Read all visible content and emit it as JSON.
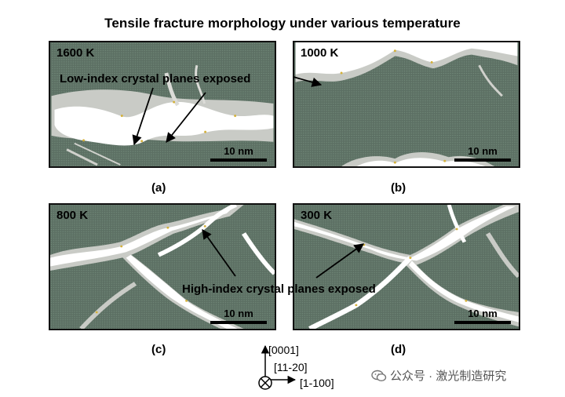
{
  "figure": {
    "title": "Tensile fracture morphology  under various temperature",
    "panels": [
      {
        "id": "a",
        "temperature": "1600 K",
        "label": "(a)",
        "scale": "10 nm"
      },
      {
        "id": "b",
        "temperature": "1000 K",
        "label": "(b)",
        "scale": "10 nm"
      },
      {
        "id": "c",
        "temperature": "800 K",
        "label": "(c)",
        "scale": "10 nm"
      },
      {
        "id": "d",
        "temperature": "300 K",
        "label": "(d)",
        "scale": "10 nm"
      }
    ],
    "annotations": {
      "low_index": "Low-index crystal planes exposed",
      "high_index": "High-index crystal planes exposed"
    },
    "axes": {
      "up": "[0001]",
      "into": "[11-20]",
      "right": "[1-100]"
    },
    "colors": {
      "matrix": "#5c6f63",
      "void": "#ffffff",
      "boundary": "#c9cbc6",
      "edge_atoms": "#d4b13a"
    }
  },
  "watermark": {
    "text": "公众号 · 激光制造研究",
    "icon": "wechat-icon"
  }
}
